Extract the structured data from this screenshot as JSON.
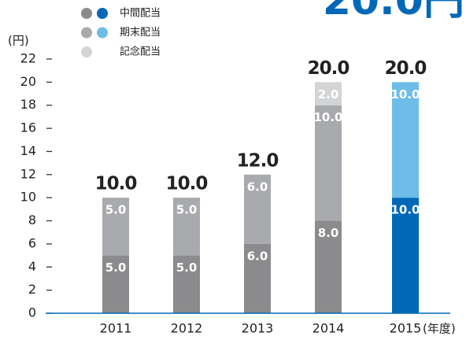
{
  "chart_data": {
    "type": "stacked_bar",
    "headline": "20.0円",
    "y_unit_label": "(円)",
    "x_unit_label": "(年度)",
    "categories": [
      "2011",
      "2012",
      "2013",
      "2014",
      "2015"
    ],
    "series": [
      {
        "name": "中間配当",
        "colors": [
          "#8b8b8d",
          "#8b8b8d",
          "#8b8b8d",
          "#8b8b8d",
          "#0068b7"
        ],
        "values": [
          5,
          5,
          6,
          8,
          10
        ],
        "value_labels": [
          "5.0",
          "5.0",
          "6.0",
          "8.0",
          "10.0"
        ]
      },
      {
        "name": "期末配当",
        "colors": [
          "#a9aaad",
          "#a9aaad",
          "#a9aaad",
          "#a9aaad",
          "#6ebde9"
        ],
        "values": [
          5,
          5,
          6,
          10,
          10
        ],
        "value_labels": [
          "5.0",
          "5.0",
          "6.0",
          "10.0",
          "10.0"
        ]
      },
      {
        "name": "記念配当",
        "colors": [
          "#d3d4d6",
          "#d3d4d6",
          "#d3d4d6",
          "#d3d4d6",
          "#d3d4d6"
        ],
        "values": [
          null,
          null,
          null,
          2,
          null
        ],
        "value_labels": [
          null,
          null,
          null,
          "2.0",
          null
        ]
      }
    ],
    "totals": [
      10,
      10,
      12,
      20,
      20
    ],
    "total_labels": [
      "10.0",
      "10.0",
      "12.0",
      "20.0",
      "20.0"
    ],
    "ylim": [
      0,
      22
    ],
    "yticks": [
      0,
      2,
      4,
      6,
      8,
      10,
      12,
      14,
      16,
      18,
      20,
      22
    ]
  }
}
